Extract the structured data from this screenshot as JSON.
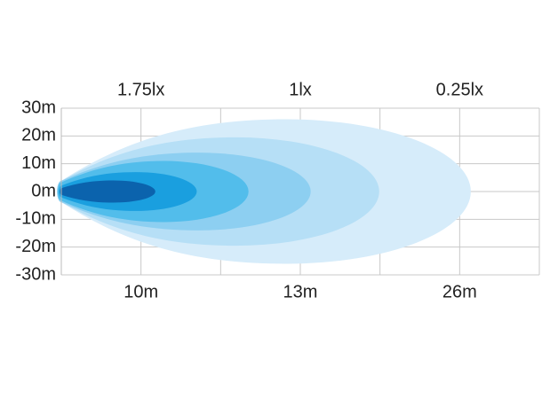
{
  "chart_data": {
    "type": "beam",
    "ylim": [
      -30,
      30
    ],
    "yticks": [
      {
        "value": 30,
        "label": "30m"
      },
      {
        "value": 20,
        "label": "20m"
      },
      {
        "value": 10,
        "label": "10m"
      },
      {
        "value": 0,
        "label": "0m"
      },
      {
        "value": -10,
        "label": "-10m"
      },
      {
        "value": -20,
        "label": "-20m"
      },
      {
        "value": -30,
        "label": "-30m"
      }
    ],
    "x_divisions": 6,
    "top_labels": [
      "1.75lx",
      "1lx",
      "0.25lx"
    ],
    "bottom_labels": [
      "10m",
      "13m",
      "26m"
    ],
    "grid": true,
    "series": [
      {
        "color": "#d6ecfa",
        "reach": 5.14,
        "half_width": 26
      },
      {
        "color": "#b6dff6",
        "reach": 3.99,
        "half_width": 19.5
      },
      {
        "color": "#8dcff1",
        "reach": 3.13,
        "half_width": 14
      },
      {
        "color": "#52bdeb",
        "reach": 2.35,
        "half_width": 11
      },
      {
        "color": "#1a9fdf",
        "reach": 1.7,
        "half_width": 7
      },
      {
        "color": "#0b63ad",
        "reach": 1.18,
        "half_width": 4
      }
    ]
  }
}
